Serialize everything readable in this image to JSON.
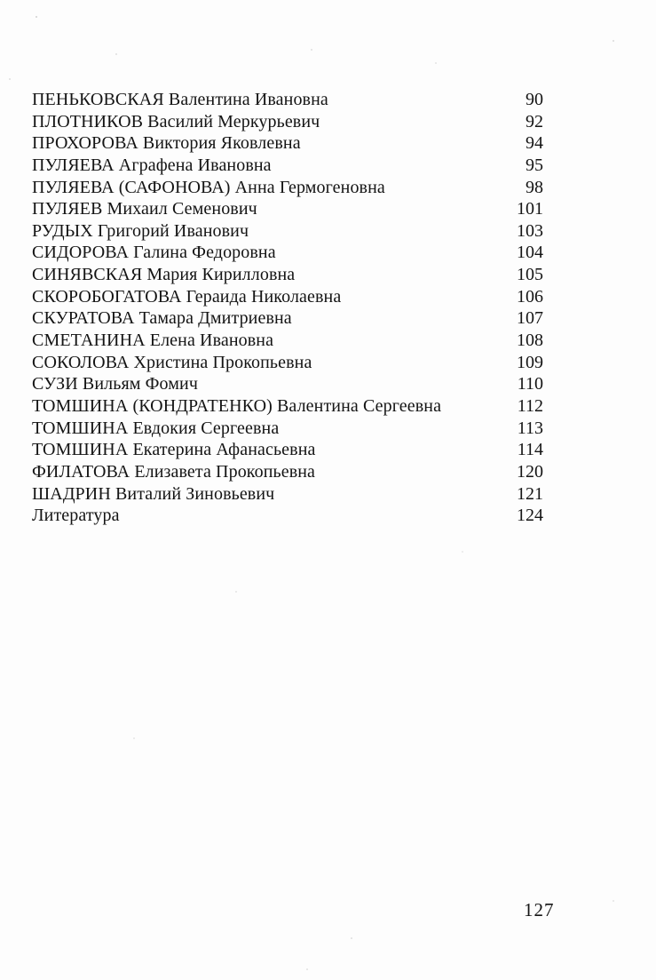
{
  "page": {
    "entries": [
      {
        "name": "ПЕНЬКОВСКАЯ Валентина Ивановна",
        "page": "90"
      },
      {
        "name": "ПЛОТНИКОВ Василий Меркурьевич",
        "page": "92"
      },
      {
        "name": "ПРОХОРОВА Виктория Яковлевна",
        "page": "94"
      },
      {
        "name": "ПУЛЯЕВА Аграфена Ивановна",
        "page": "95"
      },
      {
        "name": "ПУЛЯЕВА (САФОНОВА) Анна Гермогеновна",
        "page": "98"
      },
      {
        "name": "ПУЛЯЕВ Михаил Семенович",
        "page": "101"
      },
      {
        "name": "РУДЫХ Григорий Иванович",
        "page": "103"
      },
      {
        "name": "СИДОРОВА Галина Федоровна",
        "page": "104"
      },
      {
        "name": "СИНЯВСКАЯ Мария Кирилловна",
        "page": "105"
      },
      {
        "name": "СКОРОБОГАТОВА Гераида Николаевна",
        "page": "106"
      },
      {
        "name": "СКУРАТОВА Тамара Дмитриевна",
        "page": "107"
      },
      {
        "name": "СМЕТАНИНА Елена Ивановна",
        "page": "108"
      },
      {
        "name": "СОКОЛОВА Христина Прокопьевна",
        "page": "109"
      },
      {
        "name": "СУЗИ Вильям Фомич",
        "page": "110"
      },
      {
        "name": "ТОМШИНА (КОНДРАТЕНКО) Валентина Сергеевна",
        "page": "112"
      },
      {
        "name": "ТОМШИНА Евдокия Сергеевна",
        "page": "113"
      },
      {
        "name": "ТОМШИНА Екатерина Афанасьевна",
        "page": "114"
      },
      {
        "name": "ФИЛАТОВА Елизавета Прокопьевна",
        "page": "120"
      },
      {
        "name": "ШАДРИН Виталий Зиновьевич",
        "page": "121"
      },
      {
        "name": "Литература",
        "page": "124"
      }
    ],
    "folio": "127"
  }
}
